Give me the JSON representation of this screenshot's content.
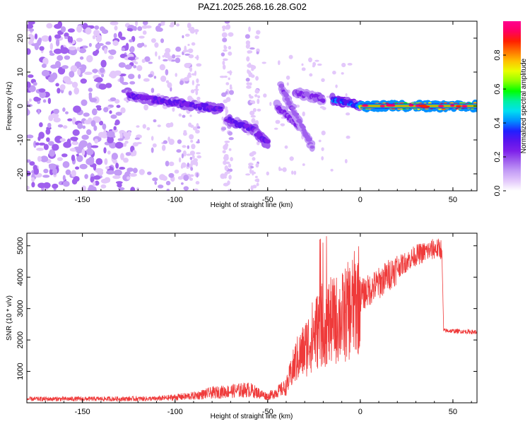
{
  "title": "PAZ1.2025.268.16.28.G02",
  "chart_data": [
    {
      "type": "heatmap",
      "xlabel": "Height of straight line (km)",
      "ylabel": "Frequency (Hz)",
      "xlim": [
        -180,
        63
      ],
      "ylim": [
        -25,
        25
      ],
      "xticks": [
        -150,
        -100,
        -50,
        0,
        50
      ],
      "yticks": [
        -20,
        -10,
        0,
        10,
        20
      ],
      "colorbar": {
        "label": "Normalized spectral amplitude",
        "range": [
          0,
          1
        ],
        "ticks": [
          0.0,
          0.2,
          0.4,
          0.6,
          0.8
        ],
        "tick_labels": [
          "0.0",
          "0.2",
          "0.4",
          "0.6",
          "0.8"
        ],
        "colors": [
          "#ffffff",
          "#e3c8fb",
          "#c39cf6",
          "#a060ee",
          "#7e20ea",
          "#5a14ee",
          "#2020ff",
          "#0090ff",
          "#00e0f0",
          "#00f0a0",
          "#00ff00",
          "#90ff00",
          "#e8ff00",
          "#ffc000",
          "#ff7000",
          "#ff2000",
          "#ff0060",
          "#ff0090"
        ]
      },
      "features": [
        {
          "x": [
            -125,
            -75
          ],
          "y": [
            3,
            -1
          ],
          "amp": 0.3
        },
        {
          "x": [
            -72,
            -57
          ],
          "y": [
            -4,
            -7
          ],
          "amp": 0.3
        },
        {
          "x": [
            -56,
            -50
          ],
          "y": [
            -8,
            -11
          ],
          "amp": 0.3
        },
        {
          "x": [
            -45,
            -33
          ],
          "y": [
            0,
            -6
          ],
          "amp": 0.25
        },
        {
          "x": [
            -43,
            -26
          ],
          "y": [
            6,
            -12
          ],
          "amp": 0.2
        },
        {
          "x": [
            -35,
            -20
          ],
          "y": [
            4,
            2
          ],
          "amp": 0.25
        },
        {
          "x": [
            -15,
            0
          ],
          "y": [
            2,
            0
          ],
          "amp": 0.4
        },
        {
          "x": [
            0,
            63
          ],
          "y": [
            0,
            0
          ],
          "amp": 0.85
        }
      ]
    },
    {
      "type": "line",
      "xlabel": "Height of straight line (km)",
      "ylabel": "SNR (10 * v/v)",
      "xlim": [
        -180,
        63
      ],
      "ylim": [
        0,
        5400
      ],
      "xticks": [
        -150,
        -100,
        -50,
        0,
        50
      ],
      "yticks": [
        1000,
        2000,
        3000,
        4000,
        5000
      ],
      "color": "#ef3a3a",
      "envelope": {
        "x": [
          -180,
          -110,
          -90,
          -80,
          -60,
          -50,
          -40,
          -35,
          -30,
          -25,
          -20,
          -15,
          -10,
          -5,
          0,
          10,
          20,
          30,
          40,
          44,
          45,
          63
        ],
        "y": [
          120,
          130,
          220,
          320,
          420,
          200,
          500,
          1300,
          1700,
          2200,
          2500,
          2600,
          2700,
          3000,
          3400,
          3800,
          4300,
          4700,
          4900,
          4900,
          2300,
          2250
        ]
      }
    }
  ]
}
